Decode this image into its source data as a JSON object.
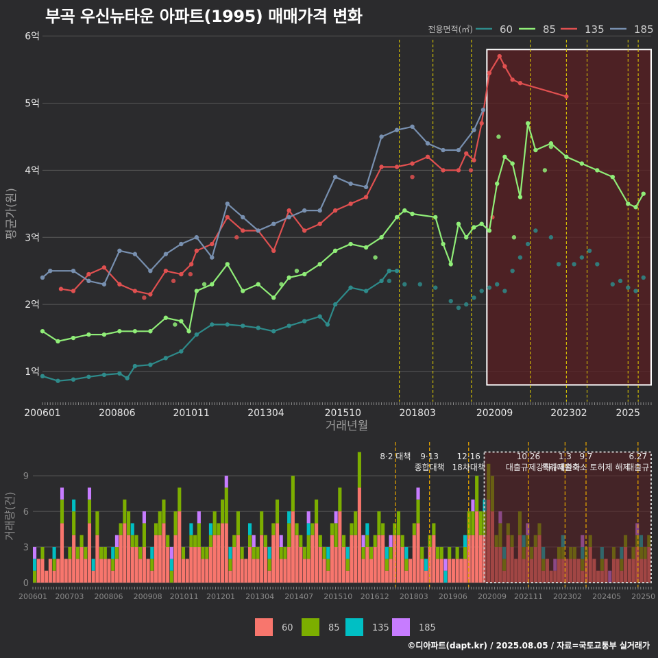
{
  "title": "부곡 우신뉴타운 아파트(1995) 매매가격 변화",
  "credit": "©디아파트(dapt.kr) / 2025.08.05 / 자료=국토교통부 실거래가",
  "colors": {
    "background": "#2b2b2d",
    "grid": "#5a5a5a",
    "highlight_fill": "#5a1f22",
    "highlight_border": "#ffffff",
    "vline": "#e8d400",
    "vline_bottom": "#e0a000",
    "s60": "#2e8b8b",
    "s85": "#90ee78",
    "s135": "#e05050",
    "s185": "#7890b0",
    "b60": "#f8766d",
    "b85": "#7cae00",
    "b135": "#00bfc4",
    "b185": "#c77cff"
  },
  "chart_data": [
    {
      "type": "line",
      "title": "부곡 우신뉴타운 아파트(1995) 매매가격 변화",
      "xlabel": "거래년월",
      "ylabel": "평균가(원)",
      "ylim": [
        0.55,
        6.15
      ],
      "xlim": [
        2006.0,
        2025.75
      ],
      "yticks": [
        {
          "v": 1,
          "label": "1억"
        },
        {
          "v": 2,
          "label": "2억"
        },
        {
          "v": 3,
          "label": "3억"
        },
        {
          "v": 4,
          "label": "4억"
        },
        {
          "v": 5,
          "label": "5억"
        },
        {
          "v": 6,
          "label": "6억"
        }
      ],
      "xticks": [
        {
          "v": 2006.0,
          "label": "200601"
        },
        {
          "v": 2008.42,
          "label": "200806"
        },
        {
          "v": 2010.83,
          "label": "201011"
        },
        {
          "v": 2013.25,
          "label": "201304"
        },
        {
          "v": 2015.75,
          "label": "201510"
        },
        {
          "v": 2018.17,
          "label": "201803"
        },
        {
          "v": 2020.67,
          "label": "202009"
        },
        {
          "v": 2023.08,
          "label": "202302"
        },
        {
          "v": 2025.0,
          "label": "2025"
        }
      ],
      "legend": {
        "title": "전용면적(㎡)",
        "position": "top-right"
      },
      "vlines": [
        2017.58,
        2018.67,
        2019.92,
        2021.83,
        2023.0,
        2023.67,
        2025.0,
        2025.33
      ],
      "highlight_range": {
        "x": [
          2020.42,
          2025.75
        ],
        "y": [
          0.8,
          5.8
        ]
      },
      "series": [
        {
          "name": "60",
          "color_key": "s60",
          "x": [
            2006.0,
            2006.5,
            2007.0,
            2007.5,
            2008.0,
            2008.5,
            2008.75,
            2009.0,
            2009.5,
            2010.0,
            2010.5,
            2011.0,
            2011.5,
            2012.0,
            2012.5,
            2013.0,
            2013.5,
            2014.0,
            2014.5,
            2015.0,
            2015.25,
            2015.5,
            2016.0,
            2016.5,
            2017.0,
            2017.25,
            2017.5
          ],
          "values": [
            0.93,
            0.86,
            0.88,
            0.92,
            0.95,
            0.97,
            0.9,
            1.08,
            1.1,
            1.2,
            1.3,
            1.55,
            1.7,
            1.7,
            1.68,
            1.65,
            1.6,
            1.68,
            1.75,
            1.82,
            1.7,
            2.0,
            2.25,
            2.2,
            2.35,
            2.5,
            2.5
          ]
        },
        {
          "name": "85",
          "color_key": "s85",
          "x": [
            2006.0,
            2006.5,
            2007.0,
            2007.5,
            2008.0,
            2008.5,
            2009.0,
            2009.5,
            2010.0,
            2010.5,
            2010.75,
            2011.0,
            2011.5,
            2012.0,
            2012.5,
            2013.0,
            2013.5,
            2014.0,
            2014.5,
            2015.0,
            2015.5,
            2016.0,
            2016.5,
            2017.0,
            2017.5,
            2017.75,
            2018.0,
            2018.75,
            2019.0,
            2019.25,
            2019.5,
            2019.75,
            2020.0,
            2020.25,
            2020.5,
            2020.75,
            2021.0,
            2021.25,
            2021.5,
            2021.75,
            2022.0,
            2022.5,
            2023.0,
            2023.5,
            2024.0,
            2024.5,
            2025.0,
            2025.25,
            2025.5
          ],
          "values": [
            1.6,
            1.45,
            1.5,
            1.55,
            1.55,
            1.6,
            1.6,
            1.6,
            1.8,
            1.75,
            1.6,
            2.2,
            2.3,
            2.6,
            2.2,
            2.3,
            2.1,
            2.4,
            2.45,
            2.6,
            2.8,
            2.9,
            2.85,
            3.0,
            3.3,
            3.4,
            3.35,
            3.3,
            2.9,
            2.6,
            3.2,
            3.0,
            3.15,
            3.2,
            3.1,
            3.8,
            4.2,
            4.1,
            3.6,
            4.7,
            4.3,
            4.4,
            4.2,
            4.1,
            4.0,
            3.9,
            3.5,
            3.45,
            3.65
          ]
        },
        {
          "name": "135",
          "color_key": "s135",
          "x": [
            2006.6,
            2007.0,
            2007.5,
            2008.0,
            2008.5,
            2009.0,
            2009.5,
            2010.0,
            2010.5,
            2010.83,
            2011.0,
            2011.5,
            2012.0,
            2012.5,
            2013.0,
            2013.5,
            2014.0,
            2014.5,
            2015.0,
            2015.5,
            2016.0,
            2016.5,
            2017.0,
            2017.5,
            2018.0,
            2018.5,
            2019.0,
            2019.5,
            2019.75,
            2020.0,
            2020.25,
            2020.5,
            2020.83,
            2021.0,
            2021.25,
            2021.5,
            2023.0
          ],
          "values": [
            2.23,
            2.2,
            2.45,
            2.55,
            2.3,
            2.2,
            2.15,
            2.5,
            2.45,
            2.6,
            2.8,
            2.9,
            3.3,
            3.1,
            3.1,
            2.8,
            3.4,
            3.1,
            3.2,
            3.4,
            3.5,
            3.6,
            4.05,
            4.05,
            4.1,
            4.2,
            4.0,
            4.0,
            4.25,
            4.15,
            4.7,
            5.45,
            5.7,
            5.55,
            5.35,
            5.3,
            5.1
          ]
        },
        {
          "name": "185",
          "color_key": "s185",
          "x": [
            2006.0,
            2006.25,
            2007.0,
            2007.5,
            2008.0,
            2008.5,
            2009.0,
            2009.5,
            2010.0,
            2010.5,
            2011.0,
            2011.5,
            2012.0,
            2012.5,
            2013.0,
            2013.5,
            2014.0,
            2014.5,
            2015.0,
            2015.5,
            2016.0,
            2016.5,
            2017.0,
            2017.5,
            2018.0,
            2018.5,
            2019.0,
            2019.5,
            2020.0,
            2020.3
          ],
          "values": [
            2.4,
            2.5,
            2.5,
            2.35,
            2.3,
            2.8,
            2.75,
            2.5,
            2.75,
            2.9,
            3.0,
            2.7,
            3.5,
            3.3,
            3.1,
            3.2,
            3.3,
            3.4,
            3.4,
            3.9,
            3.8,
            3.75,
            4.5,
            4.6,
            4.65,
            4.4,
            4.3,
            4.3,
            4.6,
            4.9
          ]
        }
      ],
      "scatter": [
        {
          "color_key": "s60",
          "x": [
            2017.25,
            2017.75,
            2018.25,
            2018.75,
            2019.25,
            2019.5,
            2019.75,
            2020.0,
            2020.25,
            2020.5,
            2020.75,
            2021.0,
            2021.25,
            2021.5,
            2021.75,
            2022.0,
            2022.5,
            2022.75,
            2023.25,
            2023.5,
            2023.75,
            2024.0,
            2024.5,
            2024.75,
            2025.0,
            2025.25,
            2025.5
          ],
          "values": [
            2.35,
            2.3,
            2.3,
            2.25,
            2.05,
            1.95,
            2.0,
            2.1,
            2.2,
            2.25,
            2.3,
            2.2,
            2.5,
            2.7,
            2.9,
            3.1,
            3.0,
            2.6,
            2.6,
            2.7,
            2.8,
            2.6,
            2.3,
            2.35,
            2.25,
            2.2,
            2.4
          ]
        },
        {
          "color_key": "s85",
          "x": [
            2010.3,
            2011.25,
            2013.75,
            2014.25,
            2016.8,
            2020.8,
            2021.3,
            2022.3,
            2022.5
          ],
          "values": [
            1.7,
            2.3,
            2.3,
            2.5,
            2.7,
            4.5,
            3.0,
            4.0,
            4.35
          ]
        },
        {
          "color_key": "s135",
          "x": [
            2009.3,
            2010.25,
            2010.8,
            2012.3,
            2018.0,
            2019.9,
            2020.6
          ],
          "values": [
            2.1,
            2.35,
            2.45,
            3.0,
            3.9,
            4.0,
            3.3
          ]
        }
      ]
    },
    {
      "type": "bar",
      "title": "",
      "xlabel": "",
      "ylabel": "거래량(건)",
      "ylim": [
        0,
        11.2
      ],
      "yticks": [
        {
          "v": 0,
          "label": "0"
        },
        {
          "v": 3,
          "label": "3"
        },
        {
          "v": 6,
          "label": "6"
        },
        {
          "v": 9,
          "label": "9"
        }
      ],
      "xticks": [
        {
          "v": 2006.0,
          "label": "200601"
        },
        {
          "v": 2007.17,
          "label": "200703"
        },
        {
          "v": 2008.42,
          "label": "200806"
        },
        {
          "v": 2009.67,
          "label": "200908"
        },
        {
          "v": 2010.83,
          "label": "201011"
        },
        {
          "v": 2012.0,
          "label": "201201"
        },
        {
          "v": 2013.25,
          "label": "201304"
        },
        {
          "v": 2014.5,
          "label": "201407"
        },
        {
          "v": 2015.75,
          "label": "201510"
        },
        {
          "v": 2016.92,
          "label": "201612"
        },
        {
          "v": 2018.17,
          "label": "201803"
        },
        {
          "v": 2019.42,
          "label": "201906"
        },
        {
          "v": 2020.67,
          "label": "202009"
        },
        {
          "v": 2021.83,
          "label": "202111"
        },
        {
          "v": 2023.08,
          "label": "202302"
        },
        {
          "v": 2024.33,
          "label": "202405"
        },
        {
          "v": 2025.5,
          "label": "20250"
        }
      ],
      "highlight_range": {
        "x": [
          2020.42,
          2025.75
        ],
        "y": [
          0,
          11
        ]
      },
      "series_names": [
        "60",
        "85",
        "135",
        "185"
      ],
      "policy_lines": [
        {
          "x": 2017.58,
          "labels": [
            "8·2 대책"
          ]
        },
        {
          "x": 2018.67,
          "labels": [
            "9·13",
            "종합대책"
          ]
        },
        {
          "x": 2019.92,
          "labels": [
            "12·16",
            "18차대책"
          ]
        },
        {
          "x": 2021.83,
          "labels": [
            "10.26",
            "대출규제강화"
          ]
        },
        {
          "x": 2023.0,
          "labels": [
            "1.3",
            "규제완화"
          ]
        },
        {
          "x": 2023.67,
          "labels": [
            "9.7",
            "특례대출축소 토허제 해제"
          ]
        },
        {
          "x": 2025.33,
          "labels": [
            "6.27",
            "대출규"
          ]
        }
      ],
      "values_total": [
        3,
        2,
        3,
        1,
        2,
        3,
        2,
        8,
        2,
        3,
        7,
        3,
        4,
        3,
        8,
        2,
        6,
        3,
        3,
        2,
        3,
        4,
        5,
        7,
        6,
        5,
        4,
        3,
        6,
        2,
        3,
        5,
        6,
        7,
        4,
        3,
        6,
        8,
        3,
        2,
        5,
        4,
        6,
        3,
        3,
        5,
        6,
        5,
        7,
        9,
        3,
        4,
        6,
        3,
        2,
        5,
        4,
        3,
        6,
        4,
        3,
        5,
        7,
        4,
        3,
        6,
        9,
        5,
        4,
        3,
        6,
        5,
        7,
        4,
        3,
        3,
        5,
        6,
        8,
        4,
        3,
        5,
        6,
        11,
        4,
        5,
        3,
        4,
        6,
        5,
        3,
        4,
        5,
        6,
        4,
        3,
        2,
        5,
        8,
        3,
        2,
        4,
        5,
        3,
        3,
        1,
        3,
        2,
        3,
        2,
        4,
        6,
        7,
        9,
        6,
        7,
        10,
        9,
        4,
        6,
        3,
        5,
        4,
        2,
        6,
        4,
        5,
        3,
        4,
        5,
        3,
        2,
        1,
        2,
        3,
        4,
        2,
        3,
        3,
        2,
        4,
        3,
        4,
        2,
        1,
        3,
        2,
        1,
        3,
        2,
        3,
        4,
        2,
        3,
        5,
        4,
        3,
        4
      ]
    }
  ]
}
